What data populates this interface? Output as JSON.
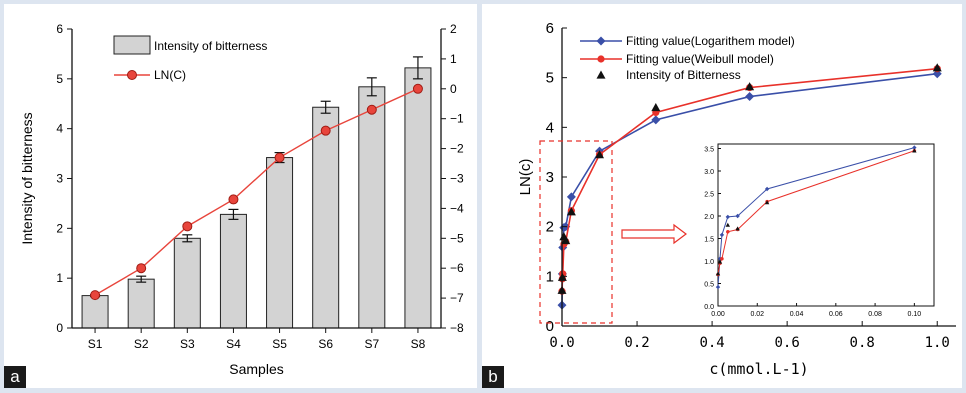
{
  "chart_data": [
    {
      "panel_label": "a",
      "type": "bar",
      "xlabel": "Samples",
      "ylabel": "Intensity of bitterness",
      "y2label": "LN(C)",
      "categories": [
        "S1",
        "S2",
        "S3",
        "S4",
        "S5",
        "S6",
        "S7",
        "S8"
      ],
      "ylim": [
        0,
        6
      ],
      "y2lim": [
        -8,
        2
      ],
      "yticks": [
        "0",
        "1",
        "2",
        "3",
        "4",
        "5",
        "6"
      ],
      "y2ticks": [
        "-8",
        "-7",
        "-6",
        "-5",
        "-4",
        "-3",
        "-2",
        "-1",
        "0",
        "1",
        "2"
      ],
      "legend_placement": "top-left",
      "bar_color": "#d3d3d3",
      "line_color": "#e8453c",
      "series": [
        {
          "name": "Intensity of bitterness",
          "type": "bar",
          "axis": "left",
          "values": [
            0.65,
            0.98,
            1.8,
            2.28,
            3.42,
            4.43,
            4.84,
            5.22
          ],
          "errors": [
            0.02,
            0.06,
            0.07,
            0.1,
            0.1,
            0.12,
            0.18,
            0.22
          ]
        },
        {
          "name": "LN(C)",
          "type": "line",
          "axis": "right",
          "values": [
            -6.9,
            -6.0,
            -4.6,
            -3.7,
            -2.3,
            -1.4,
            -0.7,
            0.0
          ]
        }
      ]
    },
    {
      "panel_label": "b",
      "type": "line",
      "xlabel": "c(mmol.L-1)",
      "ylabel": "LN(c)",
      "xlim": [
        0,
        1.05
      ],
      "ylim": [
        0,
        6
      ],
      "xticks": [
        "0.0",
        "0.2",
        "0.4",
        "0.6",
        "0.8",
        "1.0"
      ],
      "yticks": [
        "0",
        "1",
        "2",
        "3",
        "4",
        "5",
        "6"
      ],
      "legend_placement": "top-left",
      "series": [
        {
          "name": "Fitting value(Logarithem model)",
          "color": "#3a4fa8",
          "marker": "diamond",
          "x": [
            0.0,
            0.001,
            0.002,
            0.005,
            0.01,
            0.025,
            0.1,
            0.25,
            0.5,
            1.0
          ],
          "y": [
            0.42,
            1.05,
            1.58,
            1.98,
            2.0,
            2.6,
            3.52,
            4.15,
            4.62,
            5.08
          ]
        },
        {
          "name": "Fitting value(Weibull model)",
          "color": "#e8312a",
          "marker": "circle",
          "x": [
            0.0,
            0.001,
            0.002,
            0.005,
            0.01,
            0.025,
            0.1,
            0.25,
            0.5,
            1.0
          ],
          "y": [
            0.7,
            0.95,
            1.05,
            1.65,
            1.7,
            2.32,
            3.45,
            4.3,
            4.8,
            5.18
          ]
        },
        {
          "name": "Intensity of Bitterness",
          "color": "#111111",
          "marker": "triangle",
          "x": [
            0.0,
            0.001,
            0.005,
            0.01,
            0.025,
            0.1,
            0.25,
            0.5,
            1.0
          ],
          "y": [
            0.72,
            0.98,
            1.8,
            1.72,
            2.3,
            3.45,
            4.4,
            4.82,
            5.2
          ]
        }
      ],
      "inset": {
        "xlim": [
          0,
          0.11
        ],
        "ylim": [
          0,
          3.6
        ],
        "xticks": [
          "0.00",
          "0.02",
          "0.04",
          "0.06",
          "0.08",
          "0.10"
        ],
        "yticks": [
          "0.0",
          "0.5",
          "1.0",
          "1.5",
          "2.0",
          "2.5",
          "3.0",
          "3.5"
        ]
      }
    }
  ]
}
